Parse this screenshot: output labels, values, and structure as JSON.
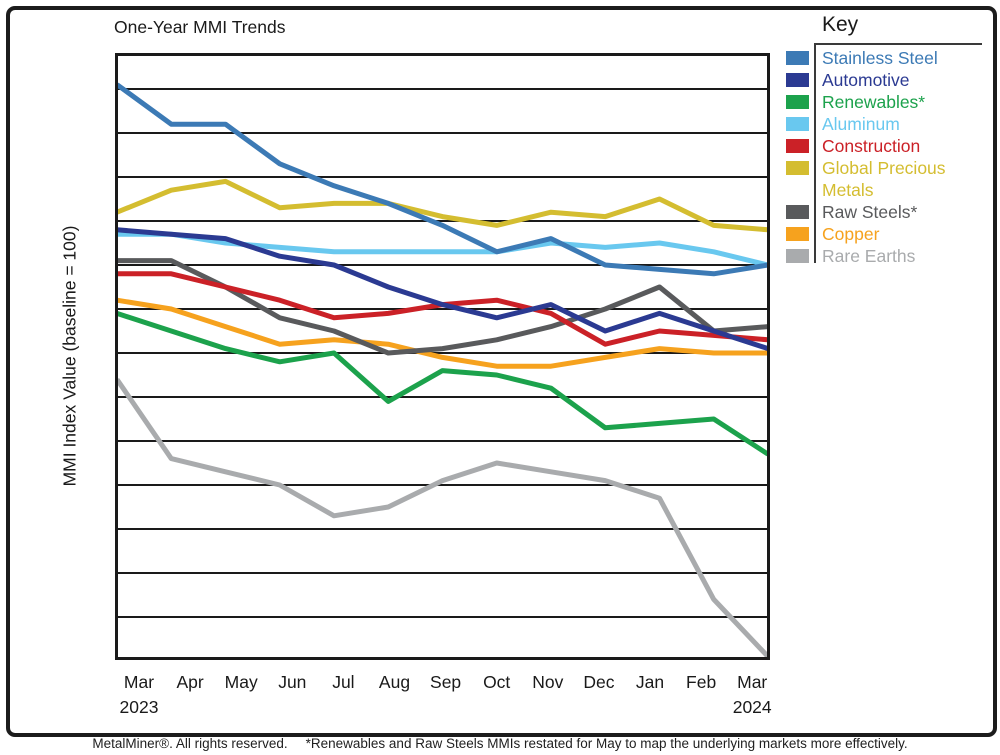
{
  "title": "One-Year MMI Trends",
  "y_axis_label": "MMI Index Value (baseline = 100)",
  "x_axis": {
    "months": [
      "Mar",
      "Apr",
      "May",
      "Jun",
      "Jul",
      "Aug",
      "Sep",
      "Oct",
      "Nov",
      "Dec",
      "Jan",
      "Feb",
      "Mar"
    ],
    "start_year": "2023",
    "end_year": "2024"
  },
  "legend": {
    "title": "Key",
    "items": [
      {
        "label": "Stainless Steel",
        "color": "#3c7ab5"
      },
      {
        "label": "Automotive",
        "color": "#2b3a92"
      },
      {
        "label": "Renewables*",
        "color": "#1ca24c"
      },
      {
        "label": "Aluminum",
        "color": "#69c8ef"
      },
      {
        "label": "Construction",
        "color": "#cb2127"
      },
      {
        "label": "Global Precious Metals",
        "color": "#d4bd30"
      },
      {
        "label": "Raw Steels*",
        "color": "#595a5c"
      },
      {
        "label": "Copper",
        "color": "#f6a21e"
      },
      {
        "label": "Rare Earths",
        "color": "#a9abad"
      }
    ]
  },
  "footer": {
    "copyright": "MetalMiner®. All rights reserved.",
    "note": "*Renewables and Raw Steels MMIs restated for May to map the underlying markets more effectively."
  },
  "chart_data": {
    "type": "line",
    "title": "One-Year MMI Trends",
    "ylabel": "MMI Index Value (baseline = 100)",
    "x": [
      "Mar 2023",
      "Apr 2023",
      "May 2023",
      "Jun 2023",
      "Jul 2023",
      "Aug 2023",
      "Sep 2023",
      "Oct 2023",
      "Nov 2023",
      "Dec 2023",
      "Jan 2024",
      "Feb 2024",
      "Mar 2024"
    ],
    "ylim": [
      30,
      168
    ],
    "grid_y_values": [
      40,
      50,
      60,
      70,
      80,
      90,
      100,
      110,
      120,
      130,
      140,
      150,
      160
    ],
    "y_tick_labels_shown": false,
    "grid": true,
    "legend_position": "right",
    "series": [
      {
        "name": "Stainless Steel",
        "color": "#3c7ab5",
        "values": [
          161,
          152,
          152,
          143,
          138,
          134,
          129,
          123,
          126,
          120,
          119,
          118,
          120
        ]
      },
      {
        "name": "Automotive",
        "color": "#2b3a92",
        "values": [
          128,
          127,
          126,
          122,
          120,
          115,
          111,
          108,
          111,
          105,
          109,
          105,
          101
        ]
      },
      {
        "name": "Renewables*",
        "color": "#1ca24c",
        "values": [
          109,
          105,
          101,
          98,
          100,
          89,
          96,
          95,
          92,
          83,
          84,
          85,
          77
        ]
      },
      {
        "name": "Aluminum",
        "color": "#69c8ef",
        "values": [
          127,
          127,
          125,
          124,
          123,
          123,
          123,
          123,
          125,
          124,
          125,
          123,
          120
        ]
      },
      {
        "name": "Construction",
        "color": "#cb2127",
        "values": [
          118,
          118,
          115,
          112,
          108,
          109,
          111,
          112,
          109,
          102,
          105,
          104,
          103
        ]
      },
      {
        "name": "Global Precious Metals",
        "color": "#d4bd30",
        "values": [
          132,
          137,
          139,
          133,
          134,
          134,
          131,
          129,
          132,
          131,
          135,
          129,
          128
        ]
      },
      {
        "name": "Raw Steels*",
        "color": "#595a5c",
        "values": [
          121,
          121,
          115,
          108,
          105,
          100,
          101,
          103,
          106,
          110,
          115,
          105,
          106
        ]
      },
      {
        "name": "Copper",
        "color": "#f6a21e",
        "values": [
          112,
          110,
          106,
          102,
          103,
          102,
          99,
          97,
          97,
          99,
          101,
          100,
          100
        ]
      },
      {
        "name": "Rare Earths",
        "color": "#a9abad",
        "values": [
          94,
          76,
          73,
          70,
          63,
          65,
          71,
          75,
          73,
          71,
          67,
          44,
          31
        ]
      }
    ],
    "draw_order": [
      "Rare Earths",
      "Renewables*",
      "Copper",
      "Raw Steels*",
      "Construction",
      "Aluminum",
      "Automotive",
      "Global Precious Metals",
      "Stainless Steel"
    ]
  }
}
